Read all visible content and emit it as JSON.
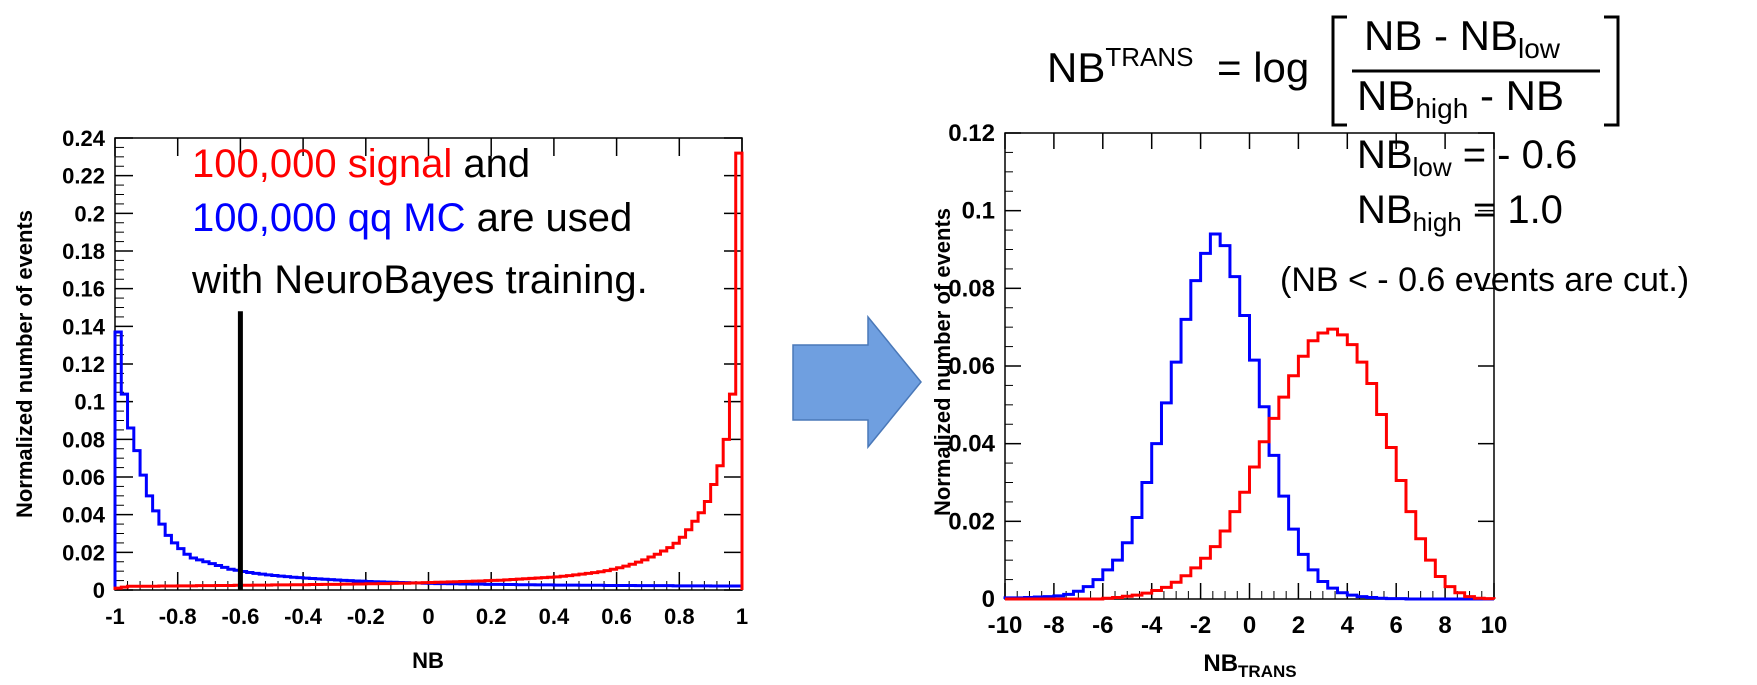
{
  "formula": {
    "lhs": "NB",
    "lhs_sup": "TRANS",
    "eq_log": "= log",
    "num_a": "NB - NB",
    "num_sub": "low",
    "den_a": "NB",
    "den_sub": "high",
    "den_b": " - NB",
    "low_label": "NB",
    "low_sub": "low",
    "low_val": " = - 0.6",
    "high_label": "NB",
    "high_sub": "high",
    "high_val": " = 1.0",
    "cut_note": "(NB < - 0.6 events are cut.)"
  },
  "annotation": {
    "line1_red": "100,000 signal",
    "line1_black": " and",
    "line2_blue": "100,000 qq MC",
    "line2_black": " are used",
    "line3": "with NeuroBayes training."
  },
  "arrow": {
    "color_fill": "#6f9fe0",
    "color_stroke": "#4a78b8"
  },
  "chart_data": [
    {
      "type": "histogram",
      "xlabel": "NB",
      "ylabel": "Normalized number of events",
      "xlim": [
        -1,
        1
      ],
      "ylim": [
        0,
        0.24
      ],
      "xticks": [
        "-1",
        "-0.8",
        "-0.6",
        "-0.4",
        "-0.2",
        "0",
        "0.2",
        "0.4",
        "0.6",
        "0.8",
        "1"
      ],
      "yticks": [
        "0",
        "0.02",
        "0.04",
        "0.06",
        "0.08",
        "0.1",
        "0.12",
        "0.14",
        "0.16",
        "0.18",
        "0.2",
        "0.22",
        "0.24"
      ],
      "cut_line_x": -0.6,
      "cut_line_top": 0.148,
      "bin_edges": [
        -1,
        -0.98,
        -0.96,
        -0.94,
        -0.92,
        -0.9,
        -0.88,
        -0.86,
        -0.84,
        -0.82,
        -0.8,
        -0.78,
        -0.76,
        -0.74,
        -0.72,
        -0.7,
        -0.68,
        -0.66,
        -0.64,
        -0.62,
        -0.6,
        -0.58,
        -0.56,
        -0.54,
        -0.52,
        -0.5,
        -0.48,
        -0.46,
        -0.44,
        -0.42,
        -0.4,
        -0.38,
        -0.36,
        -0.34,
        -0.32,
        -0.3,
        -0.28,
        -0.26,
        -0.24,
        -0.22,
        -0.2,
        -0.18,
        -0.16,
        -0.14,
        -0.12,
        -0.1,
        -0.08,
        -0.06,
        -0.04,
        -0.02,
        0,
        0.02,
        0.04,
        0.06,
        0.08,
        0.1,
        0.12,
        0.14,
        0.16,
        0.18,
        0.2,
        0.22,
        0.24,
        0.26,
        0.28,
        0.3,
        0.32,
        0.34,
        0.36,
        0.38,
        0.4,
        0.42,
        0.44,
        0.46,
        0.48,
        0.5,
        0.52,
        0.54,
        0.56,
        0.58,
        0.6,
        0.62,
        0.64,
        0.66,
        0.68,
        0.7,
        0.72,
        0.74,
        0.76,
        0.78,
        0.8,
        0.82,
        0.84,
        0.86,
        0.88,
        0.9,
        0.92,
        0.94,
        0.96,
        0.98,
        1
      ],
      "series": [
        {
          "color": "#0000ff",
          "values": [
            0.137,
            0.104,
            0.086,
            0.074,
            0.061,
            0.05,
            0.042,
            0.035,
            0.029,
            0.025,
            0.022,
            0.019,
            0.017,
            0.016,
            0.015,
            0.014,
            0.013,
            0.012,
            0.011,
            0.0105,
            0.0098,
            0.0093,
            0.0088,
            0.0084,
            0.008,
            0.0077,
            0.0074,
            0.0071,
            0.0068,
            0.0066,
            0.0063,
            0.0061,
            0.0059,
            0.0057,
            0.0055,
            0.0053,
            0.0051,
            0.005,
            0.0048,
            0.0047,
            0.0045,
            0.0044,
            0.0043,
            0.0042,
            0.0041,
            0.004,
            0.0039,
            0.0038,
            0.0037,
            0.0036,
            0.0035,
            0.0034,
            0.0034,
            0.0033,
            0.0033,
            0.0032,
            0.0032,
            0.0031,
            0.0031,
            0.003,
            0.003,
            0.003,
            0.0029,
            0.0029,
            0.0028,
            0.0028,
            0.0028,
            0.0027,
            0.0027,
            0.0027,
            0.0026,
            0.0026,
            0.0026,
            0.0026,
            0.0025,
            0.0025,
            0.0025,
            0.0025,
            0.0024,
            0.0024,
            0.0024,
            0.0024,
            0.0024,
            0.0023,
            0.0023,
            0.0023,
            0.0023,
            0.0023,
            0.0023,
            0.0022,
            0.0022,
            0.0022,
            0.0022,
            0.0022,
            0.0022,
            0.0021,
            0.0021,
            0.0021,
            0.0021,
            0.0021
          ]
        },
        {
          "color": "#ff0000",
          "values": [
            0.001,
            0.0015,
            0.002,
            0.002,
            0.002,
            0.002,
            0.002,
            0.0021,
            0.0021,
            0.0021,
            0.0022,
            0.0022,
            0.0022,
            0.0023,
            0.0023,
            0.0023,
            0.0024,
            0.0024,
            0.0024,
            0.0025,
            0.0025,
            0.0025,
            0.0026,
            0.0026,
            0.0026,
            0.0027,
            0.0027,
            0.0027,
            0.0028,
            0.0028,
            0.0028,
            0.0029,
            0.0029,
            0.003,
            0.003,
            0.003,
            0.0031,
            0.0031,
            0.0032,
            0.0032,
            0.0033,
            0.0033,
            0.0034,
            0.0034,
            0.0035,
            0.0036,
            0.0036,
            0.0037,
            0.0038,
            0.0039,
            0.004,
            0.0041,
            0.0042,
            0.0043,
            0.0044,
            0.0045,
            0.0046,
            0.0047,
            0.0048,
            0.005,
            0.0051,
            0.0052,
            0.0054,
            0.0056,
            0.0058,
            0.006,
            0.0062,
            0.0064,
            0.0066,
            0.0068,
            0.007,
            0.0073,
            0.0076,
            0.008,
            0.0084,
            0.0088,
            0.0092,
            0.0097,
            0.0103,
            0.011,
            0.0118,
            0.0127,
            0.0137,
            0.0148,
            0.016,
            0.0175,
            0.019,
            0.0207,
            0.0225,
            0.0248,
            0.028,
            0.032,
            0.0365,
            0.041,
            0.047,
            0.056,
            0.066,
            0.08,
            0.104,
            0.232
          ]
        }
      ]
    },
    {
      "type": "histogram",
      "xlabel": "NB",
      "xlabel_sub": "TRANS",
      "ylabel": "Normalized number of events",
      "xlim": [
        -10,
        10
      ],
      "ylim": [
        0,
        0.12
      ],
      "xticks": [
        "-10",
        "-8",
        "-6",
        "-4",
        "-2",
        "0",
        "2",
        "4",
        "6",
        "8",
        "10"
      ],
      "yticks": [
        "0",
        "0.02",
        "0.04",
        "0.06",
        "0.08",
        "0.1",
        "0.12"
      ],
      "bin_edges": [
        -10,
        -9.6,
        -9.2,
        -8.8,
        -8.4,
        -8,
        -7.6,
        -7.2,
        -6.8,
        -6.4,
        -6,
        -5.6,
        -5.2,
        -4.8,
        -4.4,
        -4,
        -3.6,
        -3.2,
        -2.8,
        -2.4,
        -2,
        -1.6,
        -1.2,
        -0.8,
        -0.4,
        0,
        0.4,
        0.8,
        1.2,
        1.6,
        2,
        2.4,
        2.8,
        3.2,
        3.6,
        4,
        4.4,
        4.8,
        5.2,
        5.6,
        6,
        6.4,
        6.8,
        7.2,
        7.6,
        8,
        8.4,
        8.8,
        9.2,
        9.6,
        10
      ],
      "series": [
        {
          "color": "#0000ff",
          "values": [
            0.0003,
            0.0003,
            0.0004,
            0.0005,
            0.0006,
            0.0008,
            0.0012,
            0.002,
            0.0032,
            0.005,
            0.0075,
            0.01,
            0.0145,
            0.021,
            0.03,
            0.04,
            0.0505,
            0.061,
            0.072,
            0.082,
            0.089,
            0.094,
            0.091,
            0.083,
            0.073,
            0.0615,
            0.0495,
            0.037,
            0.0265,
            0.018,
            0.0115,
            0.0075,
            0.0045,
            0.0028,
            0.0016,
            0.001,
            0.0006,
            0.0004,
            0.0002,
            0.0001,
            0.0001,
            0,
            0,
            0,
            0,
            0,
            0,
            0,
            0,
            0
          ]
        },
        {
          "color": "#ff0000",
          "values": [
            0,
            0,
            0,
            0,
            0,
            0,
            0,
            0,
            0,
            0,
            0.0002,
            0.0004,
            0.0007,
            0.001,
            0.0015,
            0.0022,
            0.003,
            0.0043,
            0.006,
            0.008,
            0.0105,
            0.0135,
            0.0175,
            0.0225,
            0.0275,
            0.034,
            0.0405,
            0.0465,
            0.052,
            0.0575,
            0.0625,
            0.0665,
            0.0685,
            0.0695,
            0.068,
            0.0655,
            0.061,
            0.0555,
            0.0475,
            0.039,
            0.0305,
            0.0225,
            0.0155,
            0.01,
            0.0058,
            0.0032,
            0.0016,
            0.0006,
            0.0002,
            0.0001
          ]
        }
      ]
    }
  ]
}
